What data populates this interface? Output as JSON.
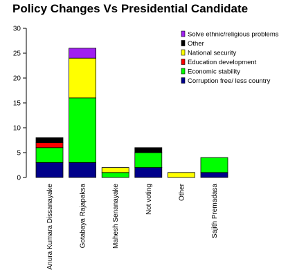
{
  "chart_data": {
    "type": "bar",
    "stacked": true,
    "title": "Policy Changes Vs Presidential Candidate",
    "xlabel": "",
    "ylabel": "",
    "ylim": [
      0,
      30
    ],
    "yticks": [
      0,
      5,
      10,
      15,
      20,
      25,
      30
    ],
    "grid": false,
    "legend_position": "top-right",
    "categories": [
      "Anura Kumara Dissanayake",
      "Gotabaya Rajapaksa",
      "Mahesh Senanayake",
      "Not voting",
      "Other",
      "Sajith Premadasa"
    ],
    "series": [
      {
        "name": "Corruption free/ less country",
        "color": "#00008B",
        "values": [
          3,
          3,
          0,
          2,
          0,
          1
        ]
      },
      {
        "name": "Economic stability",
        "color": "#00FF00",
        "values": [
          3,
          13,
          1,
          3,
          0,
          3
        ]
      },
      {
        "name": "Education development",
        "color": "#FF0000",
        "values": [
          1,
          0,
          0,
          0,
          0,
          0
        ]
      },
      {
        "name": "National security",
        "color": "#FFFF00",
        "values": [
          0,
          8,
          1,
          0,
          1,
          0
        ]
      },
      {
        "name": "Other",
        "color": "#000000",
        "values": [
          1,
          0,
          0,
          1,
          0,
          0
        ]
      },
      {
        "name": "Solve ethnic/religious problems",
        "color": "#A020F0",
        "values": [
          0,
          2,
          0,
          0,
          0,
          0
        ]
      }
    ]
  }
}
